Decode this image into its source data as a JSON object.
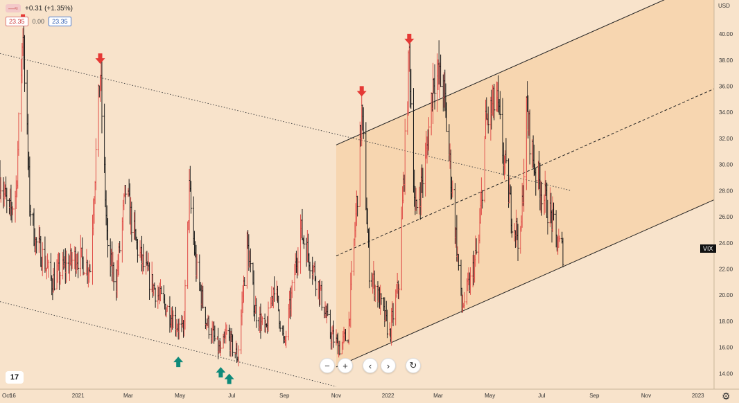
{
  "legend": {
    "change": "+0.31 (+1.35%)",
    "price_left": "23.35",
    "price_mid": "0.00",
    "price_right": "23.35",
    "button_a": "—",
    "button_b": "≈"
  },
  "axis": {
    "currency": "USD",
    "series_tag": "VIX"
  },
  "controls": {
    "zoom_out": "−",
    "zoom_in": "+",
    "prev": "‹",
    "next": "›",
    "reset": "↻"
  },
  "logo": "17",
  "colors": {
    "background": "#f8e3cb",
    "channel_fill": "#f6cc9b",
    "up_bar": "#e0504a",
    "down_bar": "#1a1a1a",
    "arrow_down": "#e53935",
    "arrow_up": "#0f8a7a"
  },
  "chart_data": {
    "type": "ohlc",
    "title": "",
    "xlabel": "",
    "ylabel": "",
    "ylim": [
      12.8,
      42.6
    ],
    "yticks": [
      14,
      16,
      18,
      20,
      22,
      24,
      26,
      28,
      30,
      32,
      34,
      36,
      38,
      40
    ],
    "ytick_labels": [
      "14.00",
      "16.00",
      "18.00",
      "20.00",
      "22.00",
      "24.00",
      "26.00",
      "28.00",
      "30.00",
      "32.00",
      "34.00",
      "36.00",
      "38.00",
      "40.00"
    ],
    "x_range": [
      "2020-10-01",
      "2023-01-20"
    ],
    "xticks": [
      {
        "date": "2020-10-01",
        "label": "Oct"
      },
      {
        "date": "2020-10-16",
        "label": "16"
      },
      {
        "date": "2021-01-01",
        "label": "2021"
      },
      {
        "date": "2021-03-01",
        "label": "Mar"
      },
      {
        "date": "2021-05-01",
        "label": "May"
      },
      {
        "date": "2021-07-01",
        "label": "Jul"
      },
      {
        "date": "2021-09-01",
        "label": "Sep"
      },
      {
        "date": "2021-11-01",
        "label": "Nov"
      },
      {
        "date": "2022-01-01",
        "label": "2022"
      },
      {
        "date": "2022-03-01",
        "label": "Mar"
      },
      {
        "date": "2022-05-01",
        "label": "May"
      },
      {
        "date": "2022-07-01",
        "label": "Jul"
      },
      {
        "date": "2022-09-01",
        "label": "Sep"
      },
      {
        "date": "2022-11-01",
        "label": "Nov"
      },
      {
        "date": "2023-01-01",
        "label": "2023"
      }
    ],
    "price_path": [
      [
        "2020-10-01",
        29
      ],
      [
        "2020-10-12",
        26
      ],
      [
        "2020-10-20",
        28
      ],
      [
        "2020-10-28",
        40.5
      ],
      [
        "2020-11-05",
        27
      ],
      [
        "2020-11-12",
        24
      ],
      [
        "2020-11-20",
        23
      ],
      [
        "2020-12-01",
        21
      ],
      [
        "2020-12-15",
        22
      ],
      [
        "2020-12-31",
        23
      ],
      [
        "2021-01-15",
        22
      ],
      [
        "2021-01-27",
        37
      ],
      [
        "2021-02-05",
        23
      ],
      [
        "2021-02-15",
        21
      ],
      [
        "2021-02-26",
        28
      ],
      [
        "2021-03-10",
        24
      ],
      [
        "2021-03-20",
        22
      ],
      [
        "2021-04-05",
        20
      ],
      [
        "2021-04-20",
        18.5
      ],
      [
        "2021-05-05",
        17
      ],
      [
        "2021-05-12",
        28
      ],
      [
        "2021-05-20",
        22
      ],
      [
        "2021-06-01",
        18
      ],
      [
        "2021-06-18",
        15.5
      ],
      [
        "2021-06-25",
        17
      ],
      [
        "2021-07-08",
        15.2
      ],
      [
        "2021-07-19",
        24
      ],
      [
        "2021-07-28",
        19
      ],
      [
        "2021-08-10",
        17
      ],
      [
        "2021-08-20",
        21
      ],
      [
        "2021-09-01",
        16
      ],
      [
        "2021-09-20",
        25
      ],
      [
        "2021-09-30",
        23
      ],
      [
        "2021-10-10",
        21
      ],
      [
        "2021-10-25",
        17
      ],
      [
        "2021-11-05",
        16
      ],
      [
        "2021-11-15",
        17
      ],
      [
        "2021-11-26",
        28
      ],
      [
        "2021-12-01",
        34
      ],
      [
        "2021-12-10",
        22
      ],
      [
        "2021-12-20",
        20
      ],
      [
        "2022-01-03",
        17
      ],
      [
        "2022-01-14",
        21
      ],
      [
        "2022-01-26",
        38.5
      ],
      [
        "2022-02-02",
        26
      ],
      [
        "2022-02-14",
        30
      ],
      [
        "2022-02-24",
        37
      ],
      [
        "2022-03-07",
        36
      ],
      [
        "2022-03-15",
        30
      ],
      [
        "2022-03-29",
        19
      ],
      [
        "2022-04-08",
        21
      ],
      [
        "2022-04-18",
        24
      ],
      [
        "2022-04-26",
        33
      ],
      [
        "2022-05-09",
        35
      ],
      [
        "2022-05-18",
        30
      ],
      [
        "2022-05-27",
        26
      ],
      [
        "2022-06-06",
        24
      ],
      [
        "2022-06-13",
        34
      ],
      [
        "2022-06-22",
        30
      ],
      [
        "2022-07-01",
        28
      ],
      [
        "2022-07-12",
        26
      ],
      [
        "2022-07-19",
        24
      ],
      [
        "2022-07-26",
        23.35
      ]
    ],
    "channel": {
      "from": [
        "2021-11-01",
        14.5
      ],
      "to": [
        "2023-01-20",
        27.3
      ],
      "offset": 17.0,
      "fill_start": "2021-11-01"
    },
    "dotted_lines": [
      {
        "from": [
          "2020-10-01",
          38.5
        ],
        "to": [
          "2022-08-05",
          28
        ]
      },
      {
        "from": [
          "2020-10-01",
          19.5
        ],
        "to": [
          "2021-11-01",
          13
        ]
      }
    ],
    "signal_arrows": [
      {
        "type": "down",
        "date": "2020-10-28",
        "value": 40.5
      },
      {
        "type": "down",
        "date": "2021-01-27",
        "value": 37.5
      },
      {
        "type": "down",
        "date": "2021-12-01",
        "value": 35
      },
      {
        "type": "down",
        "date": "2022-01-26",
        "value": 39
      },
      {
        "type": "up",
        "date": "2021-04-29",
        "value": 15.5
      },
      {
        "type": "up",
        "date": "2021-06-18",
        "value": 14.7
      },
      {
        "type": "up",
        "date": "2021-06-28",
        "value": 14.2
      }
    ]
  }
}
